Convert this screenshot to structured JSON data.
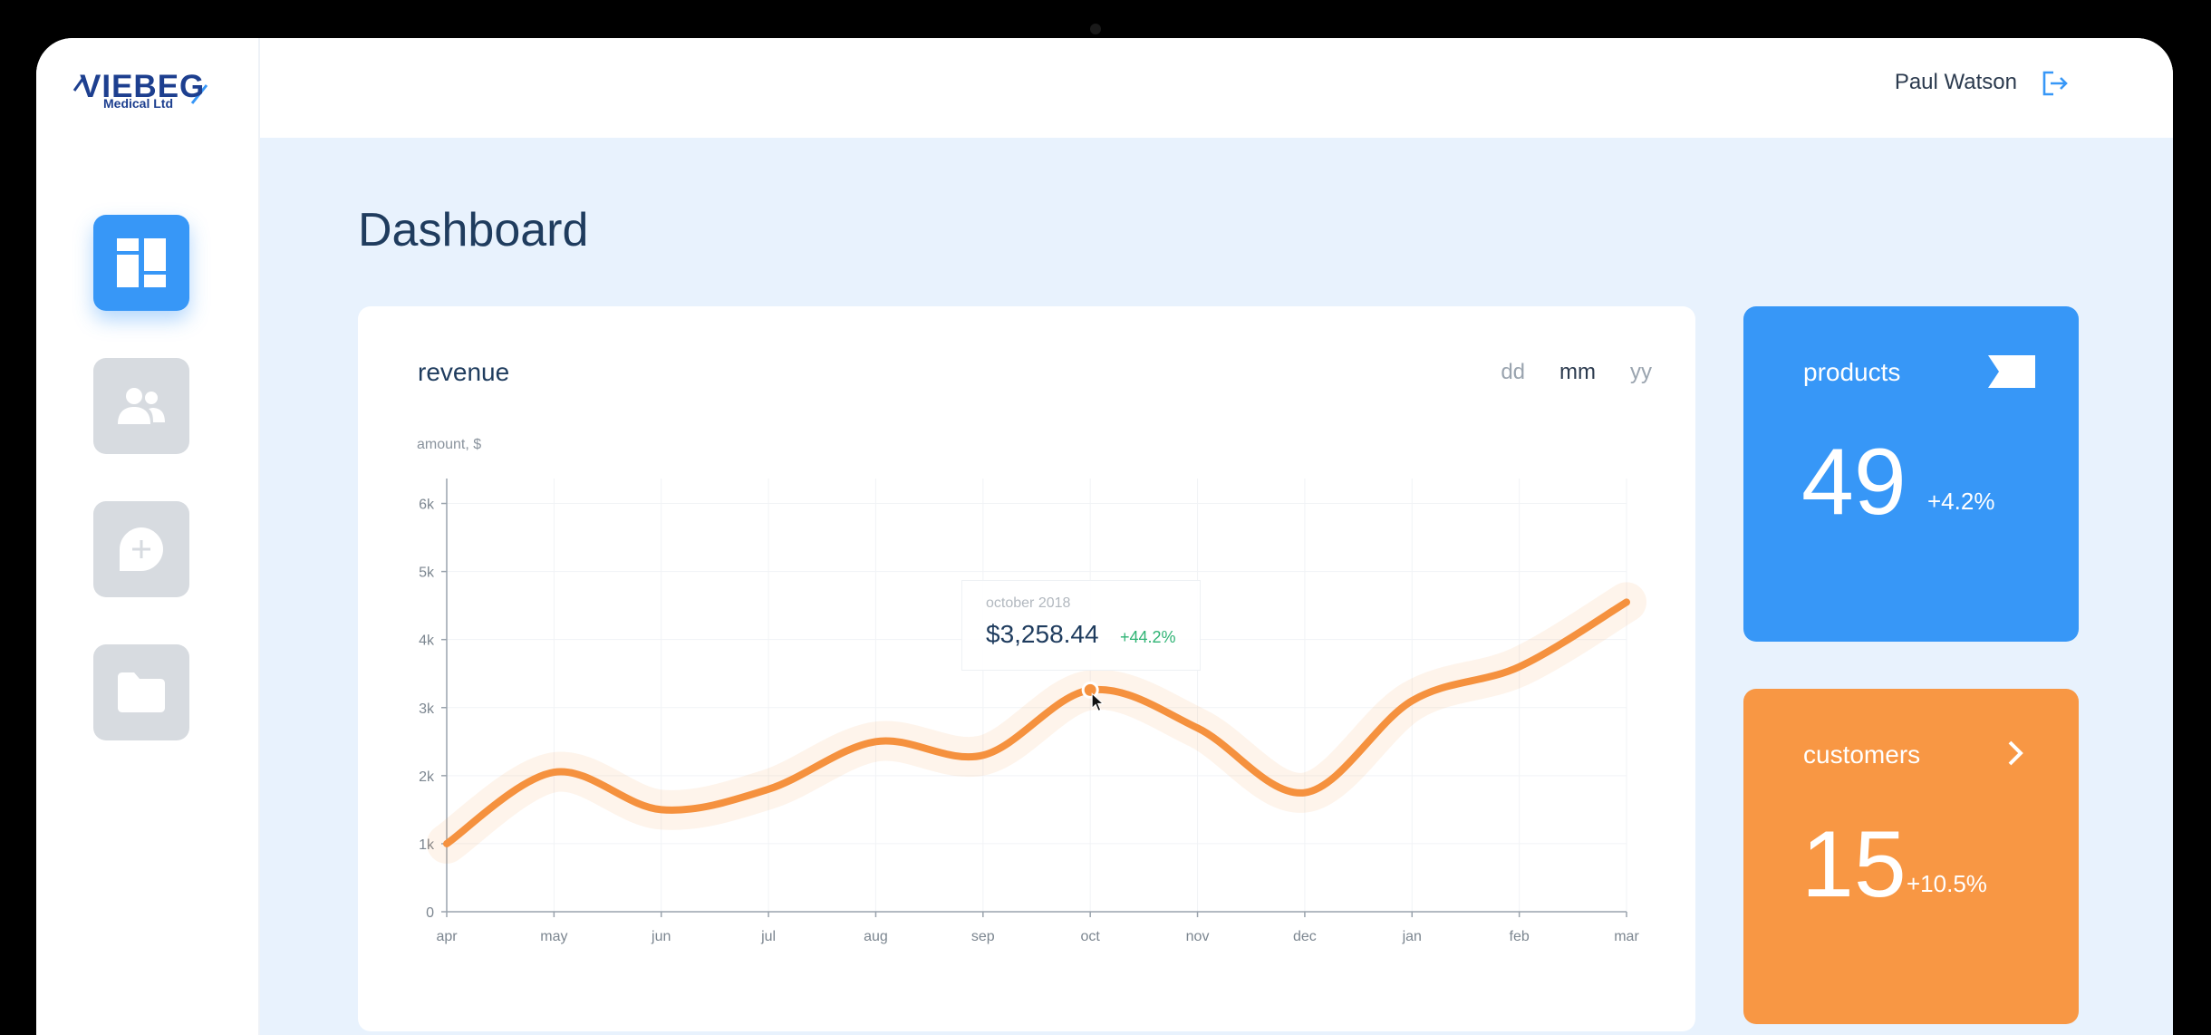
{
  "app": {
    "logo_main": "VIEBEG",
    "logo_sub": "Medical Ltd"
  },
  "sidebar": {
    "items": [
      {
        "id": "dashboard",
        "icon": "dashboard-icon",
        "active": true
      },
      {
        "id": "users",
        "icon": "users-icon",
        "active": false
      },
      {
        "id": "messages",
        "icon": "add-message-icon",
        "active": false
      },
      {
        "id": "files",
        "icon": "folder-icon",
        "active": false
      }
    ]
  },
  "header": {
    "user_name": "Paul Watson",
    "logout_icon": "logout-icon"
  },
  "page": {
    "title": "Dashboard"
  },
  "revenue": {
    "title": "revenue",
    "periods": [
      "dd",
      "mm",
      "yy"
    ],
    "active_period": "mm",
    "axis_unit": "amount, $",
    "tooltip": {
      "date": "october 2018",
      "value": "$3,258.44",
      "change": "+44.2%"
    }
  },
  "chart_data": {
    "type": "line",
    "x": [
      "apr",
      "may",
      "jun",
      "jul",
      "aug",
      "sep",
      "oct",
      "nov",
      "dec",
      "jan",
      "feb",
      "mar"
    ],
    "series": [
      {
        "values": [
          1000,
          2050,
          1500,
          1800,
          2500,
          2300,
          3258,
          2700,
          1750,
          3100,
          3600,
          4550
        ]
      }
    ],
    "y_ticks": [
      "0",
      "1k",
      "2k",
      "3k",
      "4k",
      "5k",
      "6k"
    ],
    "ylim": [
      0,
      6300
    ],
    "ylabel": "amount, $",
    "grid": true,
    "highlight_index": 6,
    "line_color": "#f5913e"
  },
  "stats": {
    "products": {
      "title": "products",
      "value": "49",
      "change": "+4.2%",
      "icon": "flag-icon"
    },
    "customers": {
      "title": "customers",
      "value": "15",
      "change": "+10.5%",
      "icon": "chevron-right-icon"
    }
  },
  "colors": {
    "accent_blue": "#3797f7",
    "accent_orange": "#f89744",
    "background": "#e8f2fd",
    "positive": "#2fb374"
  }
}
